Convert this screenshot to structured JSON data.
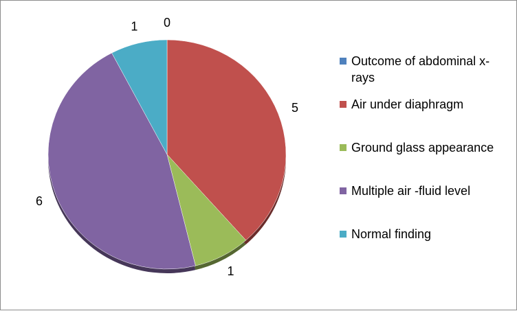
{
  "chart_data": {
    "type": "pie",
    "title": "",
    "series_name": "Outcome of abdominal  x-rays",
    "categories": [
      "Outcome of abdominal  x-rays",
      "Air under diaphragm",
      "Ground glass appearance",
      "Multiple air -fluid level",
      "Normal finding"
    ],
    "values": [
      0,
      5,
      1,
      6,
      1
    ],
    "data_labels": [
      "0",
      "5",
      "1",
      "6",
      "1"
    ],
    "colors": [
      "#4f81bd",
      "#c0504d",
      "#9bbb59",
      "#8064a2",
      "#4bacc6"
    ],
    "legend_position": "right",
    "start_angle": "12 o'clock",
    "direction": "clockwise"
  }
}
